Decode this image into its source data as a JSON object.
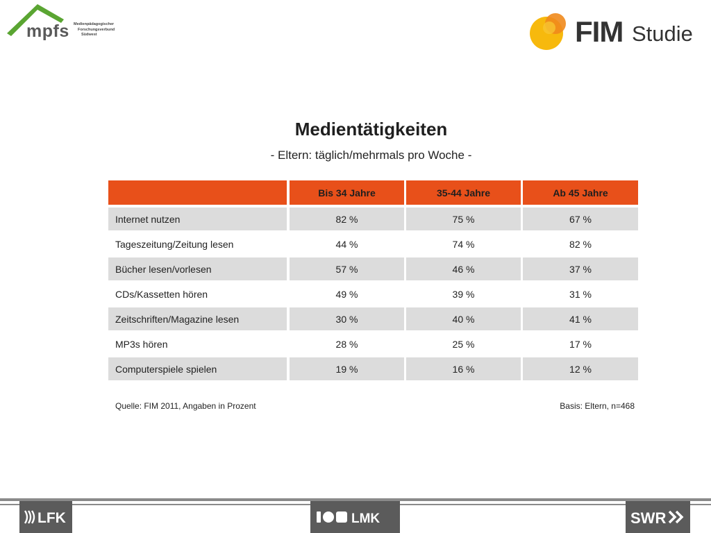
{
  "logos": {
    "mpfs_word": "mpfs",
    "mpfs_subtitle": [
      "Medienpädagogischer",
      "Forschungsverbund",
      "Südwest"
    ],
    "fim_word": "FIM",
    "studie_word": "Studie",
    "lfk": "LFK",
    "lmk": "LMK",
    "swr": "SWR"
  },
  "title": "Medientätigkeiten",
  "subtitle": "- Eltern: täglich/mehrmals pro Woche -",
  "table": {
    "columns": [
      "",
      "Bis 34 Jahre",
      "35-44 Jahre",
      "Ab 45 Jahre"
    ],
    "rows": [
      {
        "label": "Internet nutzen",
        "values": [
          "82 %",
          "75 %",
          "67 %"
        ]
      },
      {
        "label": "Tageszeitung/Zeitung lesen",
        "values": [
          "44 %",
          "74 %",
          "82 %"
        ]
      },
      {
        "label": "Bücher lesen/vorlesen",
        "values": [
          "57 %",
          "46 %",
          "37 %"
        ]
      },
      {
        "label": "CDs/Kassetten hören",
        "values": [
          "49 %",
          "39 %",
          "31 %"
        ]
      },
      {
        "label": "Zeitschriften/Magazine lesen",
        "values": [
          "30 %",
          "40 %",
          "41 %"
        ]
      },
      {
        "label": "MP3s hören",
        "values": [
          "28 %",
          "25 %",
          "17 %"
        ]
      },
      {
        "label": "Computerspiele spielen",
        "values": [
          "19 %",
          "16 %",
          "12 %"
        ]
      }
    ]
  },
  "source": "Quelle: FIM 2011, Angaben in Prozent",
  "basis": "Basis: Eltern, n=468",
  "colors": {
    "header_orange": "#e8501a",
    "row_shade": "#dcdcdc",
    "fim_yellow": "#f7b500",
    "fim_orange": "#f08a1c",
    "mpfs_green": "#5aa532",
    "footer_grey": "#5b5b5b"
  }
}
